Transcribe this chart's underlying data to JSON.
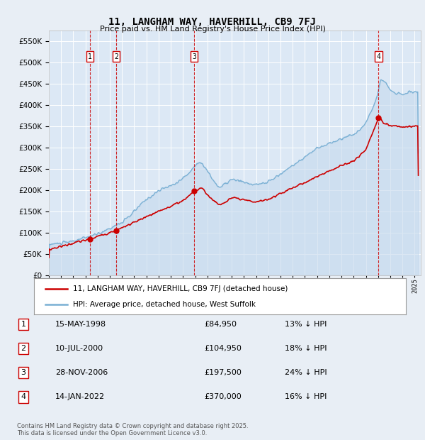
{
  "title": "11, LANGHAM WAY, HAVERHILL, CB9 7FJ",
  "subtitle": "Price paid vs. HM Land Registry's House Price Index (HPI)",
  "ylim": [
    0,
    575000
  ],
  "yticks": [
    0,
    50000,
    100000,
    150000,
    200000,
    250000,
    300000,
    350000,
    400000,
    450000,
    500000,
    550000
  ],
  "ytick_labels": [
    "£0",
    "£50K",
    "£100K",
    "£150K",
    "£200K",
    "£250K",
    "£300K",
    "£350K",
    "£400K",
    "£450K",
    "£500K",
    "£550K"
  ],
  "bg_color": "#e8eef5",
  "plot_bg": "#dce8f5",
  "grid_color": "#ffffff",
  "sale_line_color": "#cc0000",
  "hpi_line_color": "#7ab0d4",
  "hpi_fill_color": "#c5d9ed",
  "transaction_color": "#cc0000",
  "transactions": [
    {
      "date": 1998.37,
      "price": 84950,
      "label": "1"
    },
    {
      "date": 2000.52,
      "price": 104950,
      "label": "2"
    },
    {
      "date": 2006.91,
      "price": 197500,
      "label": "3"
    },
    {
      "date": 2022.04,
      "price": 370000,
      "label": "4"
    }
  ],
  "transaction_table": [
    {
      "num": "1",
      "date": "15-MAY-1998",
      "price": "£84,950",
      "pct": "13% ↓ HPI"
    },
    {
      "num": "2",
      "date": "10-JUL-2000",
      "price": "£104,950",
      "pct": "18% ↓ HPI"
    },
    {
      "num": "3",
      "date": "28-NOV-2006",
      "price": "£197,500",
      "pct": "24% ↓ HPI"
    },
    {
      "num": "4",
      "date": "14-JAN-2022",
      "price": "£370,000",
      "pct": "16% ↓ HPI"
    }
  ],
  "legend_sale": "11, LANGHAM WAY, HAVERHILL, CB9 7FJ (detached house)",
  "legend_hpi": "HPI: Average price, detached house, West Suffolk",
  "footer": "Contains HM Land Registry data © Crown copyright and database right 2025.\nThis data is licensed under the Open Government Licence v3.0.",
  "xmin": 1995.0,
  "xmax": 2025.5,
  "hpi_anchors": [
    [
      1995.0,
      72000
    ],
    [
      1995.5,
      73500
    ],
    [
      1996.0,
      75000
    ],
    [
      1996.5,
      77000
    ],
    [
      1997.0,
      80000
    ],
    [
      1997.5,
      84000
    ],
    [
      1998.0,
      88000
    ],
    [
      1998.5,
      92000
    ],
    [
      1999.0,
      97000
    ],
    [
      1999.5,
      103000
    ],
    [
      2000.0,
      110000
    ],
    [
      2000.5,
      117000
    ],
    [
      2001.0,
      124000
    ],
    [
      2001.5,
      135000
    ],
    [
      2002.0,
      150000
    ],
    [
      2002.5,
      165000
    ],
    [
      2003.0,
      178000
    ],
    [
      2003.5,
      188000
    ],
    [
      2004.0,
      198000
    ],
    [
      2004.5,
      205000
    ],
    [
      2005.0,
      210000
    ],
    [
      2005.5,
      218000
    ],
    [
      2006.0,
      228000
    ],
    [
      2006.5,
      240000
    ],
    [
      2007.0,
      258000
    ],
    [
      2007.3,
      268000
    ],
    [
      2007.6,
      260000
    ],
    [
      2008.0,
      245000
    ],
    [
      2008.5,
      222000
    ],
    [
      2009.0,
      205000
    ],
    [
      2009.5,
      215000
    ],
    [
      2010.0,
      225000
    ],
    [
      2010.5,
      222000
    ],
    [
      2011.0,
      218000
    ],
    [
      2011.5,
      215000
    ],
    [
      2012.0,
      212000
    ],
    [
      2012.5,
      215000
    ],
    [
      2013.0,
      220000
    ],
    [
      2013.5,
      228000
    ],
    [
      2014.0,
      238000
    ],
    [
      2014.5,
      248000
    ],
    [
      2015.0,
      258000
    ],
    [
      2015.5,
      268000
    ],
    [
      2016.0,
      278000
    ],
    [
      2016.5,
      288000
    ],
    [
      2017.0,
      298000
    ],
    [
      2017.5,
      305000
    ],
    [
      2018.0,
      310000
    ],
    [
      2018.5,
      315000
    ],
    [
      2019.0,
      320000
    ],
    [
      2019.5,
      328000
    ],
    [
      2020.0,
      330000
    ],
    [
      2020.5,
      340000
    ],
    [
      2021.0,
      360000
    ],
    [
      2021.5,
      390000
    ],
    [
      2022.0,
      430000
    ],
    [
      2022.2,
      460000
    ],
    [
      2022.5,
      455000
    ],
    [
      2022.8,
      445000
    ],
    [
      2023.0,
      435000
    ],
    [
      2023.5,
      428000
    ],
    [
      2024.0,
      425000
    ],
    [
      2024.5,
      430000
    ],
    [
      2025.0,
      432000
    ],
    [
      2025.3,
      430000
    ]
  ],
  "sale_anchors": [
    [
      1995.0,
      60000
    ],
    [
      1998.37,
      84950
    ],
    [
      2000.52,
      104950
    ],
    [
      2006.0,
      175000
    ],
    [
      2006.91,
      197500
    ],
    [
      2007.5,
      205000
    ],
    [
      2008.5,
      175000
    ],
    [
      2009.0,
      165000
    ],
    [
      2009.5,
      172000
    ],
    [
      2010.0,
      182000
    ],
    [
      2011.0,
      176000
    ],
    [
      2012.0,
      172000
    ],
    [
      2013.0,
      178000
    ],
    [
      2014.0,
      192000
    ],
    [
      2015.0,
      205000
    ],
    [
      2016.0,
      218000
    ],
    [
      2017.0,
      232000
    ],
    [
      2018.0,
      245000
    ],
    [
      2019.0,
      258000
    ],
    [
      2020.0,
      268000
    ],
    [
      2021.0,
      295000
    ],
    [
      2022.04,
      370000
    ],
    [
      2022.2,
      368000
    ],
    [
      2022.5,
      358000
    ],
    [
      2023.0,
      352000
    ],
    [
      2024.0,
      348000
    ],
    [
      2025.0,
      350000
    ],
    [
      2025.3,
      352000
    ]
  ]
}
